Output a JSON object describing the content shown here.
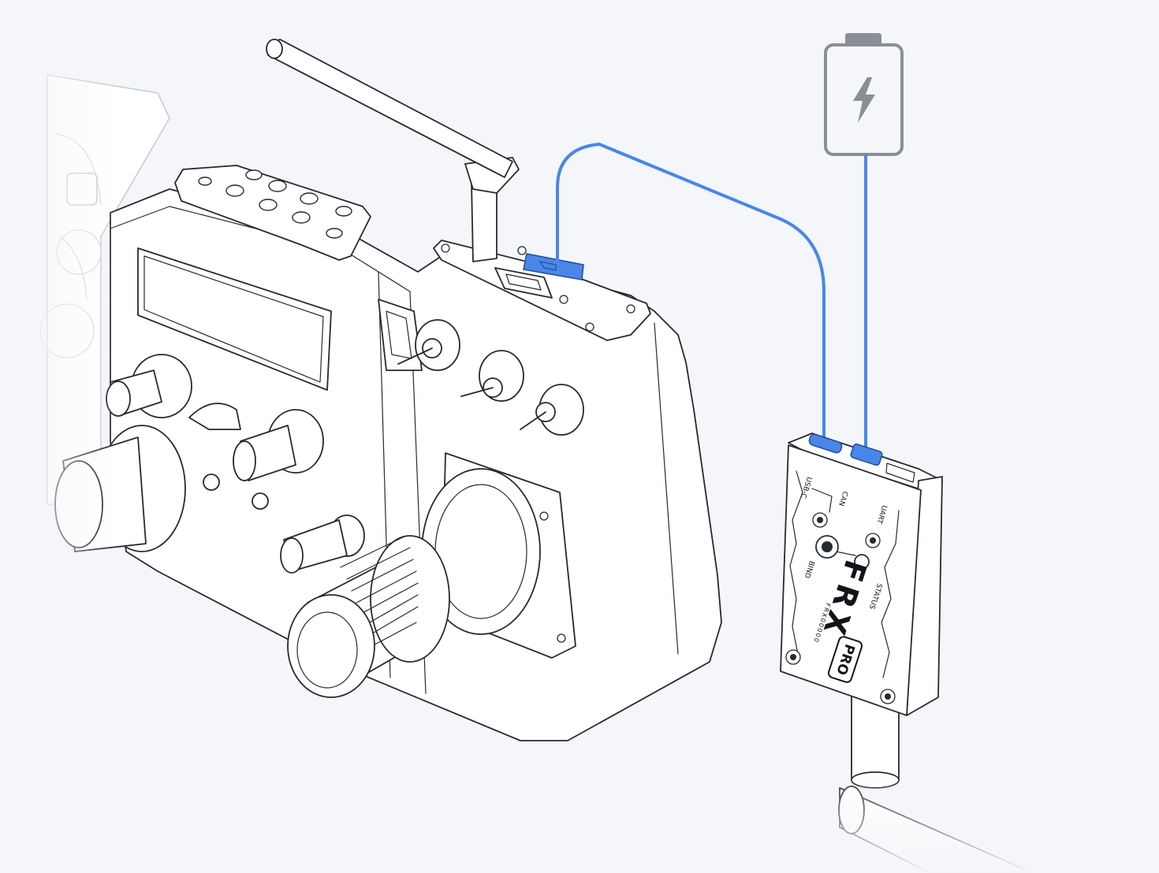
{
  "colors": {
    "background": "#f4f6f9",
    "cable": "#4a86e8",
    "port_highlight": "#4a86e8",
    "battery_outline": "#8a8f96",
    "line_art": "#262a30"
  },
  "icons": {
    "battery": "battery-icon",
    "power": "lightning-bolt-icon"
  },
  "receiver": {
    "brand": "FRX",
    "badge": "PRO",
    "model_code": "FRX00000",
    "port_labels": {
      "usbc": "USB-C",
      "can": "CAN",
      "uart": "UART",
      "bind": "BIND",
      "status": "STATUS"
    }
  }
}
